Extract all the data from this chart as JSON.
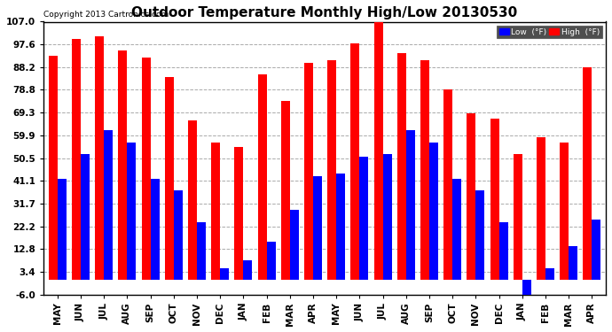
{
  "title": "Outdoor Temperature Monthly High/Low 20130530",
  "copyright_text": "Copyright 2013 Cartronics.com",
  "legend_low_label": "Low  (°F)",
  "legend_high_label": "High  (°F)",
  "months": [
    "MAY",
    "JUN",
    "JUL",
    "AUG",
    "SEP",
    "OCT",
    "NOV",
    "DEC",
    "JAN",
    "FEB",
    "MAR",
    "APR",
    "MAY",
    "JUN",
    "JUL",
    "AUG",
    "SEP",
    "OCT",
    "NOV",
    "DEC",
    "JAN",
    "FEB",
    "MAR",
    "APR"
  ],
  "high_values": [
    93,
    100,
    101,
    95,
    92,
    84,
    66,
    57,
    55,
    85,
    74,
    90,
    91,
    98,
    108,
    94,
    91,
    79,
    69,
    67,
    52,
    59,
    57,
    88
  ],
  "low_values": [
    42,
    52,
    62,
    57,
    42,
    37,
    24,
    5,
    8,
    16,
    29,
    43,
    44,
    51,
    52,
    62,
    57,
    42,
    37,
    24,
    -8,
    5,
    14,
    25
  ],
  "yticks": [
    107.0,
    97.6,
    88.2,
    78.8,
    69.3,
    59.9,
    50.5,
    41.1,
    31.7,
    22.2,
    12.8,
    3.4,
    -6.0
  ],
  "ylim": [
    -6.0,
    107.0
  ],
  "bar_width": 0.38,
  "high_color": "#FF0000",
  "low_color": "#0000FF",
  "grid_color": "#AAAAAA",
  "bg_color": "#FFFFFF",
  "title_fontsize": 11,
  "tick_fontsize": 7.5
}
